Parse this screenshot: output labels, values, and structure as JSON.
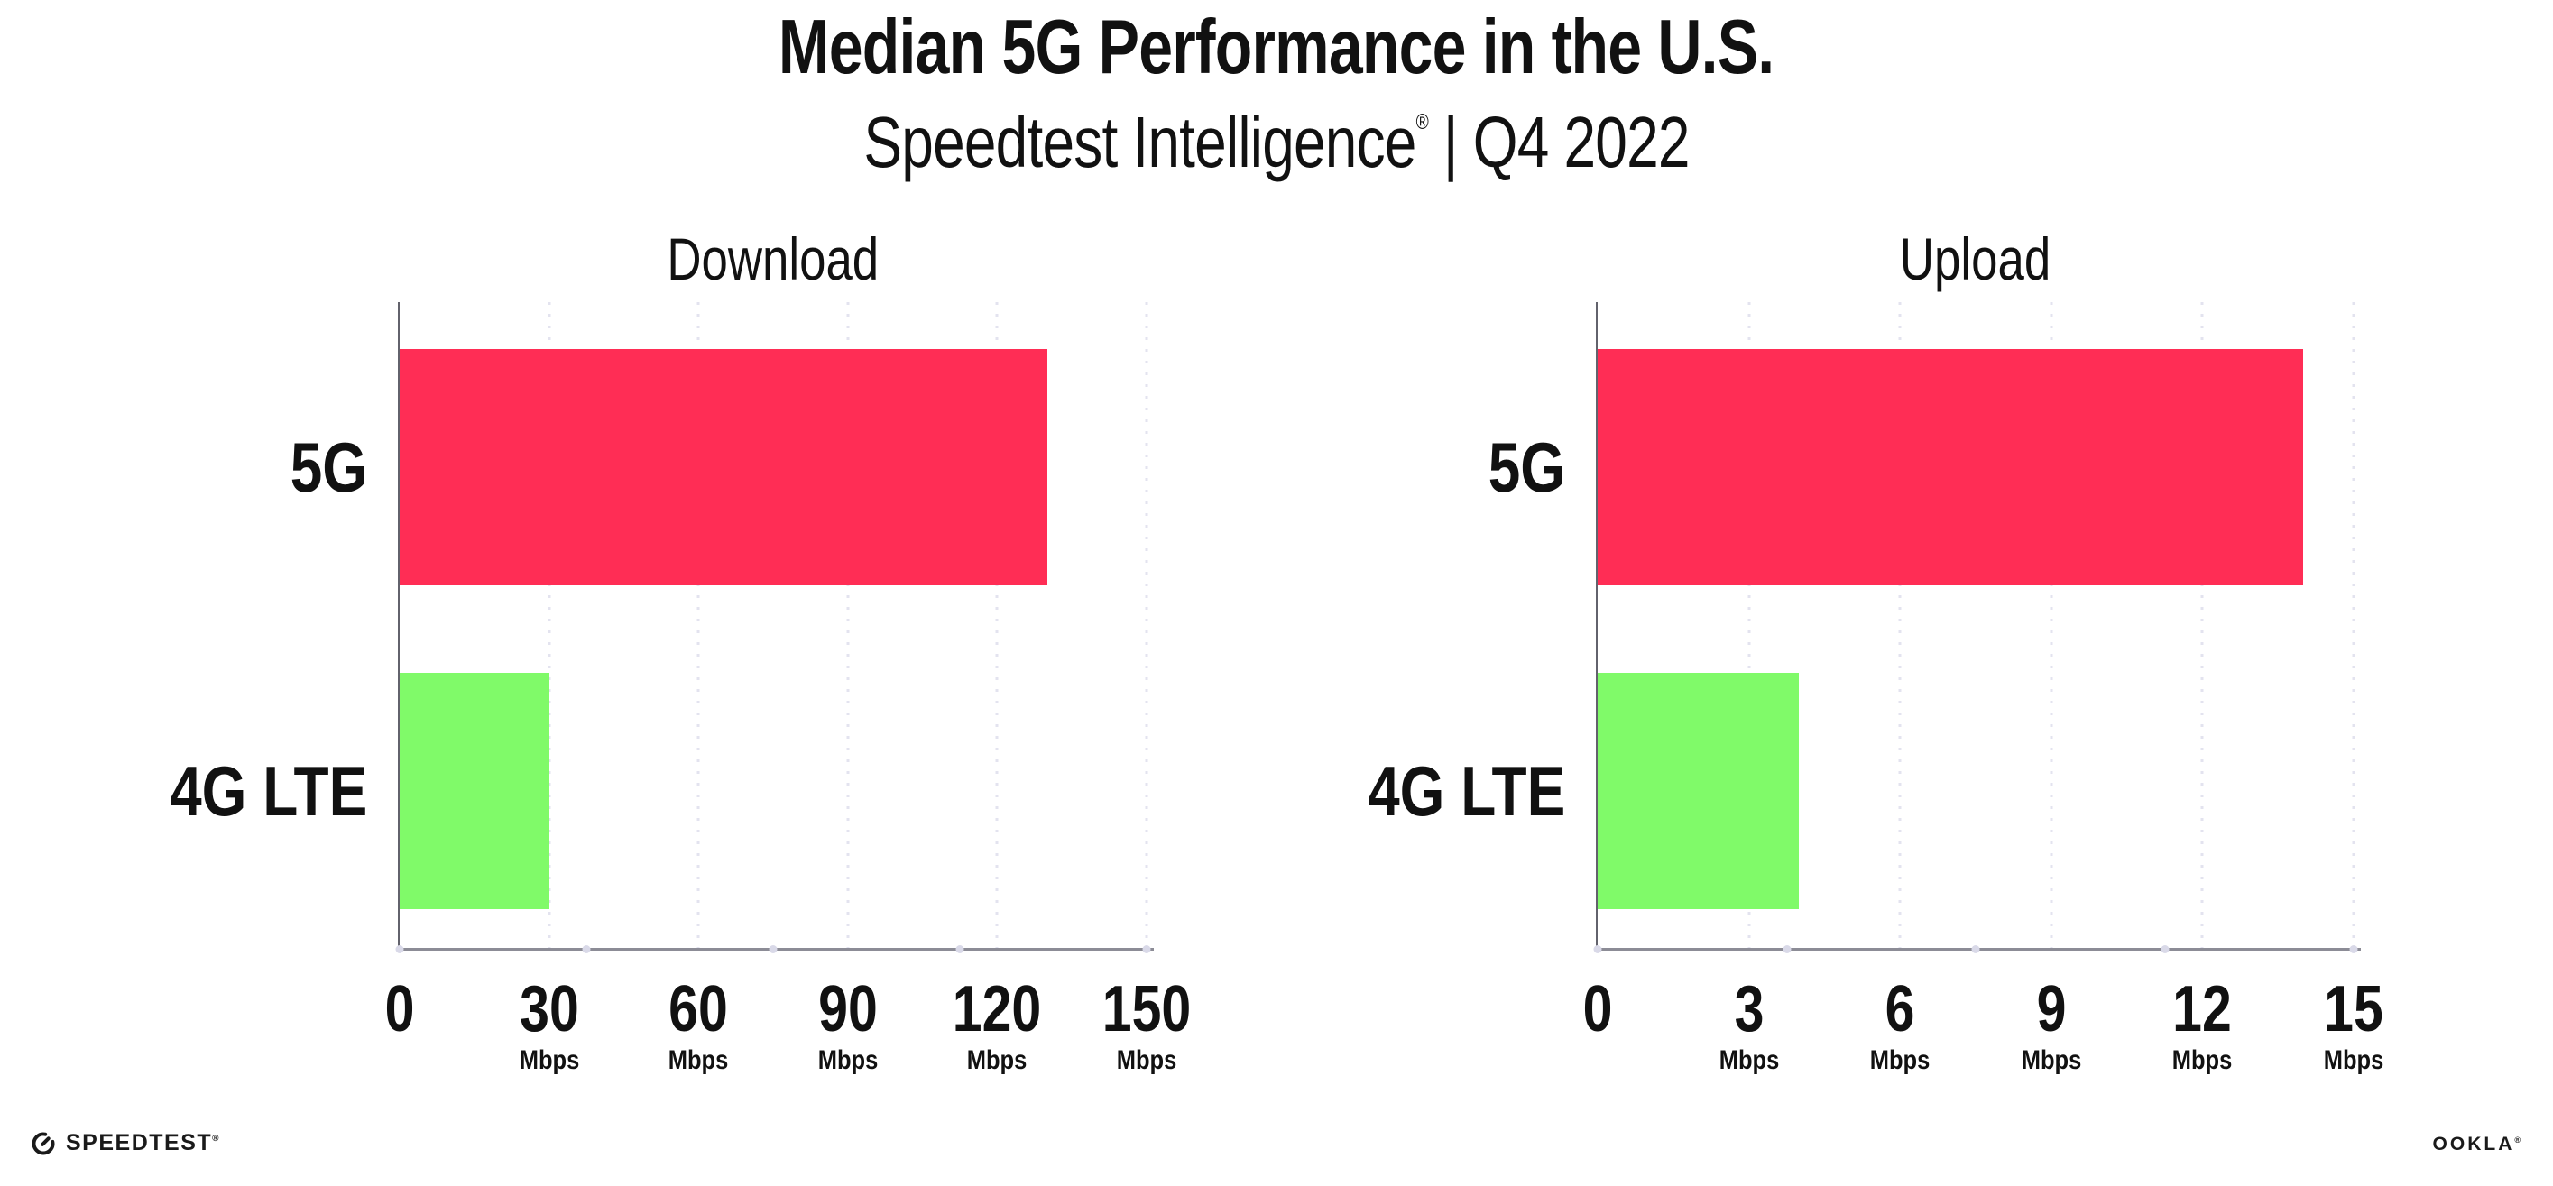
{
  "page": {
    "title": "Median 5G Performance in the U.S.",
    "subtitle_prefix": "Speedtest Intelligence",
    "subtitle_reg": "®",
    "subtitle_suffix": " | Q4 2022"
  },
  "footer": {
    "speedtest_label": "SPEEDTEST",
    "speedtest_reg": "®",
    "ookla_label": "OOKLA",
    "ookla_reg": "®"
  },
  "colors": {
    "bar_5g": "#FF2D55",
    "bar_4g_lte": "#80FA69",
    "gridline": "#E3E3EF",
    "axis_baseline": "#8C8C96",
    "axis_spine": "#62626C",
    "axis_dot": "#D9D9E8",
    "text": "#111111"
  },
  "chart_data": [
    {
      "type": "bar",
      "orientation": "horizontal",
      "title": "Download",
      "categories": [
        "5G",
        "4G LTE"
      ],
      "values": [
        130,
        30
      ],
      "unit": "Mbps",
      "xlabel": "",
      "ylabel": "",
      "xlim": [
        0,
        150
      ],
      "xticks": [
        0,
        30,
        60,
        90,
        120,
        150
      ],
      "bar_colors": [
        "#FF2D55",
        "#80FA69"
      ],
      "grid": "dotted-vertical",
      "legend": "none"
    },
    {
      "type": "bar",
      "orientation": "horizontal",
      "title": "Upload",
      "categories": [
        "5G",
        "4G LTE"
      ],
      "values": [
        14,
        4
      ],
      "unit": "Mbps",
      "xlabel": "",
      "ylabel": "",
      "xlim": [
        0,
        15
      ],
      "xticks": [
        0,
        3,
        6,
        9,
        12,
        15
      ],
      "bar_colors": [
        "#FF2D55",
        "#80FA69"
      ],
      "grid": "dotted-vertical",
      "legend": "none"
    }
  ]
}
